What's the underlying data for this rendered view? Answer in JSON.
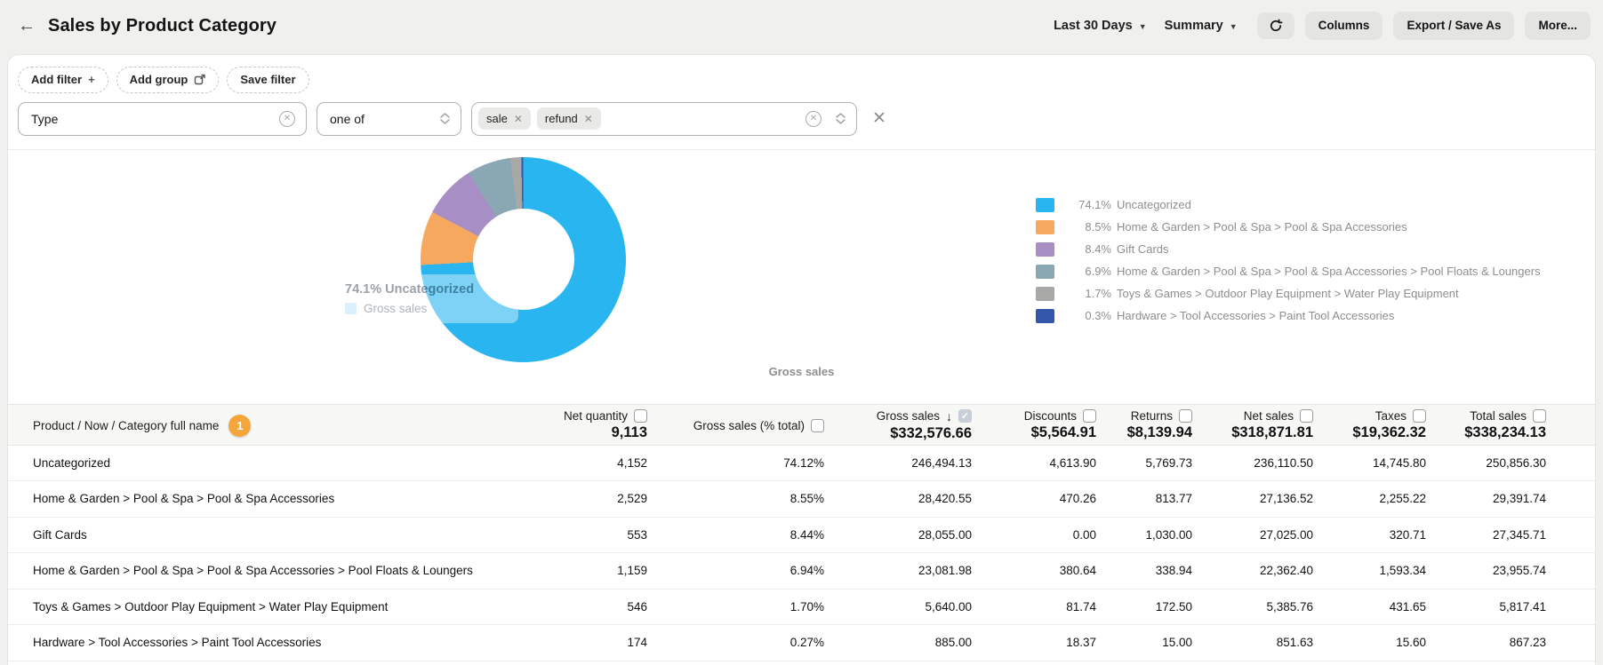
{
  "header": {
    "back_label": "←",
    "title": "Sales by Product Category",
    "date_range": "Last 30 Days",
    "view_mode": "Summary",
    "columns_label": "Columns",
    "export_label": "Export / Save As",
    "more_label": "More..."
  },
  "filters": {
    "add_filter_label": "Add filter",
    "add_group_label": "Add group",
    "save_filter_label": "Save filter",
    "row": {
      "field": "Type",
      "operator": "one of",
      "values": [
        "sale",
        "refund"
      ]
    }
  },
  "chart_data": {
    "type": "pie",
    "subtype": "donut",
    "title": "Gross sales",
    "legend_position": "right",
    "slices": [
      {
        "label": "Uncategorized",
        "percent": 74.1,
        "value": 246494.13,
        "color": "#29b5f0"
      },
      {
        "label": "Home & Garden > Pool & Spa > Pool & Spa Accessories",
        "percent": 8.5,
        "value": 28420.55,
        "color": "#f6a95e"
      },
      {
        "label": "Gift Cards",
        "percent": 8.4,
        "value": 28055.0,
        "color": "#a78fc5"
      },
      {
        "label": "Home & Garden > Pool & Spa > Pool & Spa Accessories > Pool Floats & Loungers",
        "percent": 6.9,
        "value": 23081.98,
        "color": "#8aa8b3"
      },
      {
        "label": "Toys & Games > Outdoor Play Equipment > Water Play Equipment",
        "percent": 1.7,
        "value": 5640.0,
        "color": "#a8a8a6"
      },
      {
        "label": "Hardware > Tool Accessories > Paint Tool Accessories",
        "percent": 0.3,
        "value": 885.0,
        "color": "#3456ab"
      }
    ],
    "tooltip": {
      "line1": "74.1% Uncategorized",
      "series": "Gross sales"
    }
  },
  "table": {
    "first_column_header": "Product / Now / Category full name",
    "badge_count": "1",
    "columns": [
      {
        "label": "Net quantity",
        "total": "9,113",
        "checked": false,
        "sorted": false
      },
      {
        "label": "Gross sales (% total)",
        "total": "",
        "checked": false,
        "sorted": false
      },
      {
        "label": "Gross sales",
        "total": "$332,576.66",
        "checked": true,
        "sorted": true
      },
      {
        "label": "Discounts",
        "total": "$5,564.91",
        "checked": false,
        "sorted": false
      },
      {
        "label": "Returns",
        "total": "$8,139.94",
        "checked": false,
        "sorted": false
      },
      {
        "label": "Net sales",
        "total": "$318,871.81",
        "checked": false,
        "sorted": false
      },
      {
        "label": "Taxes",
        "total": "$19,362.32",
        "checked": false,
        "sorted": false
      },
      {
        "label": "Total sales",
        "total": "$338,234.13",
        "checked": false,
        "sorted": false
      }
    ],
    "rows": [
      {
        "name": "Uncategorized",
        "cells": [
          "4,152",
          "74.12%",
          "246,494.13",
          "4,613.90",
          "5,769.73",
          "236,110.50",
          "14,745.80",
          "250,856.30"
        ]
      },
      {
        "name": "Home & Garden > Pool & Spa > Pool & Spa Accessories",
        "cells": [
          "2,529",
          "8.55%",
          "28,420.55",
          "470.26",
          "813.77",
          "27,136.52",
          "2,255.22",
          "29,391.74"
        ]
      },
      {
        "name": "Gift Cards",
        "cells": [
          "553",
          "8.44%",
          "28,055.00",
          "0.00",
          "1,030.00",
          "27,025.00",
          "320.71",
          "27,345.71"
        ]
      },
      {
        "name": "Home & Garden > Pool & Spa > Pool & Spa Accessories > Pool Floats & Loungers",
        "cells": [
          "1,159",
          "6.94%",
          "23,081.98",
          "380.64",
          "338.94",
          "22,362.40",
          "1,593.34",
          "23,955.74"
        ]
      },
      {
        "name": "Toys & Games > Outdoor Play Equipment > Water Play Equipment",
        "cells": [
          "546",
          "1.70%",
          "5,640.00",
          "81.74",
          "172.50",
          "5,385.76",
          "431.65",
          "5,817.41"
        ]
      },
      {
        "name": "Hardware > Tool Accessories > Paint Tool Accessories",
        "cells": [
          "174",
          "0.27%",
          "885.00",
          "18.37",
          "15.00",
          "851.63",
          "15.60",
          "867.23"
        ]
      }
    ]
  }
}
